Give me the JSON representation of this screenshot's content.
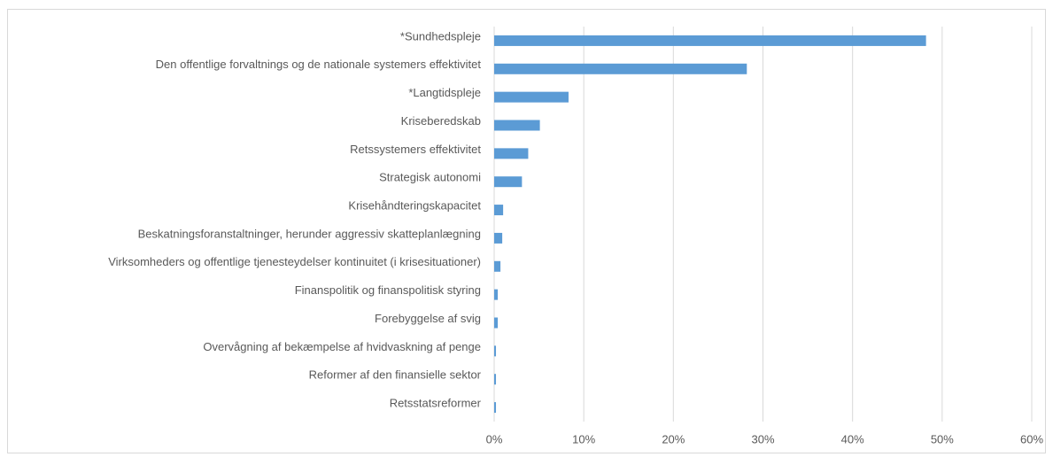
{
  "chart_data": {
    "type": "hbar",
    "categories": [
      "*Sundhedspleje",
      "Den offentlige forvaltnings og de nationale systemers effektivitet",
      "*Langtidspleje",
      "Kriseberedskab",
      "Retssystemers effektivitet",
      "Strategisk autonomi",
      "Krisehåndteringskapacitet",
      "Beskatningsforanstaltninger, herunder aggressiv skatteplanlægning",
      "Virksomheders og offentlige tjenesteydelser kontinuitet (i krisesituationer)",
      "Finanspolitik og finanspolitisk styring",
      "Forebyggelse af svig",
      "Overvågning af bekæmpelse af hvidvaskning af penge",
      "Reformer af den finansielle sektor",
      "Retsstatsreformer"
    ],
    "values": [
      48.2,
      28.2,
      8.3,
      5.1,
      3.8,
      3.1,
      1.0,
      0.9,
      0.7,
      0.4,
      0.4,
      0.2,
      0.2,
      0.2
    ],
    "color": "#5b9bd5",
    "xlim": [
      0,
      60
    ],
    "xticks": [
      {
        "value": 0,
        "label": "0%"
      },
      {
        "value": 10,
        "label": "10%"
      },
      {
        "value": 20,
        "label": "20%"
      },
      {
        "value": 30,
        "label": "30%"
      },
      {
        "value": 40,
        "label": "40%"
      },
      {
        "value": 50,
        "label": "50%"
      },
      {
        "value": 60,
        "label": "60%"
      }
    ],
    "grid": true
  }
}
